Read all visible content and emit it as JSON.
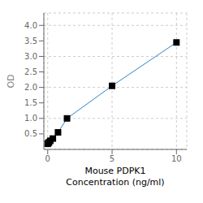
{
  "chart_data": {
    "type": "line",
    "x": [
      0.0,
      0.05,
      0.1,
      0.2,
      0.4,
      0.8,
      1.5,
      5.0,
      10.0
    ],
    "values": [
      0.18,
      0.21,
      0.23,
      0.28,
      0.35,
      0.55,
      1.0,
      2.05,
      3.45
    ],
    "marker": "square",
    "xlabel": "Mouse PDPK1\nConcentration (ng/ml)",
    "ylabel": "OD",
    "xlim": [
      -0.3,
      10.8
    ],
    "ylim": [
      0.0,
      4.4
    ],
    "xticks": [
      0,
      5,
      10
    ],
    "yticks": [
      0.5,
      {
        "value": 1.0,
        "label": "1.0"
      },
      1.5,
      {
        "value": 2.0,
        "label": "2.0"
      },
      2.5,
      {
        "value": 3.0,
        "label": "3.0"
      },
      3.5,
      {
        "value": 4.0,
        "label": "4.0"
      }
    ],
    "grid": true
  }
}
